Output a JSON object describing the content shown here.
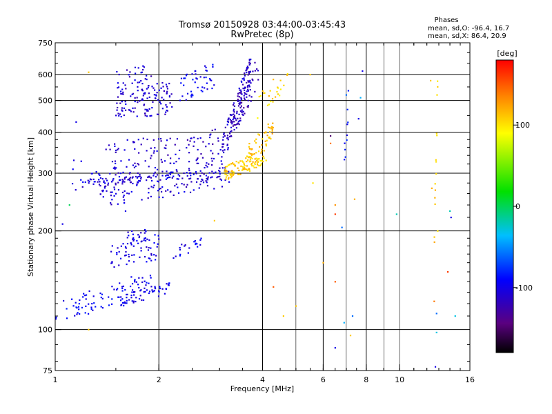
{
  "chart_data": {
    "type": "scatter",
    "title": "Tromsø 20150928 03:44:00-03:45:43",
    "subtitle": "RwPretec (8p)",
    "xlabel": "Frequency [MHz]",
    "ylabel": "Stationary phase Virtual Height [km]",
    "x_scale": "log",
    "y_scale": "log",
    "xlim": [
      1,
      16
    ],
    "ylim": [
      75,
      750
    ],
    "x_ticks": [
      1,
      2,
      4,
      6,
      8,
      10,
      16
    ],
    "x_tick_labels": [
      "1",
      "2",
      "4",
      "6",
      "8",
      "10",
      "16"
    ],
    "x_grid_major": [
      2,
      4,
      6,
      8
    ],
    "x_grid_minor": [
      5,
      7,
      9,
      10
    ],
    "y_ticks": [
      75,
      100,
      200,
      300,
      400,
      500,
      600,
      750
    ],
    "y_tick_labels": [
      "75",
      "100",
      "200",
      "300",
      "400",
      "500",
      "600",
      "750"
    ],
    "y_grid": [
      100,
      200,
      300,
      400,
      500,
      600
    ],
    "grid": true,
    "stats": {
      "header": "Phases",
      "line_o": "mean, sd,O: -96.4, 16.7",
      "line_x": "mean, sd,X:  86.4, 20.9"
    },
    "colorbar": {
      "label": "[deg]",
      "range": [
        -180,
        180
      ],
      "ticks": [
        100,
        0,
        -100
      ],
      "tick_labels": [
        "100",
        "0",
        "-100"
      ],
      "placement": "right"
    },
    "series": [
      {
        "marker_color_by": "phase_deg",
        "traces": [
          {
            "f": [
              1.0,
              1.9
            ],
            "h_start": 112,
            "h_end": 140,
            "phase": -95,
            "n": 90,
            "spread": 0.035
          },
          {
            "f": [
              1.55,
              2.15
            ],
            "h_start": 123,
            "h_end": 135,
            "phase": -100,
            "n": 50,
            "spread": 0.02
          },
          {
            "f": [
              1.45,
              2.0
            ],
            "h_start": 165,
            "h_end": 180,
            "phase": -102,
            "n": 60,
            "spread": 0.04
          },
          {
            "f": [
              1.6,
              1.85
            ],
            "h_start": 190,
            "h_end": 195,
            "phase": -105,
            "n": 20,
            "spread": 0.02
          },
          {
            "f": [
              2.2,
              2.7
            ],
            "h_start": 173,
            "h_end": 185,
            "phase": -98,
            "n": 20,
            "spread": 0.02
          },
          {
            "f": [
              1.2,
              3.2
            ],
            "h_start": 280,
            "h_end": 300,
            "phase": -105,
            "n": 70,
            "spread": 0.012
          },
          {
            "f": [
              1.1,
              1.6
            ],
            "h_start": 300,
            "h_end": 275,
            "phase": -100,
            "n": 25,
            "spread": 0.05
          },
          {
            "f": [
              1.35,
              3.2
            ],
            "h_start": 258,
            "h_end": 300,
            "phase": -108,
            "n": 140,
            "spread": 0.04
          },
          {
            "f": [
              1.4,
              2.3
            ],
            "h_start": 330,
            "h_end": 340,
            "phase": -110,
            "n": 90,
            "spread": 0.06
          },
          {
            "f": [
              1.5,
              2.2
            ],
            "h_start": 490,
            "h_end": 510,
            "phase": -108,
            "n": 110,
            "spread": 0.05
          },
          {
            "f": [
              1.5,
              1.9
            ],
            "h_start": 560,
            "h_end": 590,
            "phase": -110,
            "n": 35,
            "spread": 0.04
          },
          {
            "f": [
              2.3,
              2.9
            ],
            "h_start": 540,
            "h_end": 600,
            "phase": -95,
            "n": 45,
            "spread": 0.04
          },
          {
            "f": [
              2.4,
              3.0
            ],
            "h_start": 340,
            "h_end": 370,
            "phase": -115,
            "n": 40,
            "spread": 0.05
          },
          {
            "f": [
              3.0,
              3.7
            ],
            "h_start": 330,
            "h_end": 620,
            "phase": -112,
            "n": 130,
            "spread": 0.05
          },
          {
            "f": [
              3.2,
              3.9
            ],
            "h_start": 400,
            "h_end": 630,
            "phase": -120,
            "n": 60,
            "spread": 0.05
          },
          {
            "f": [
              3.1,
              4.1
            ],
            "h_start": 298,
            "h_end": 340,
            "phase": 108,
            "n": 120,
            "spread": 0.025
          },
          {
            "f": [
              3.6,
              4.3
            ],
            "h_start": 340,
            "h_end": 410,
            "phase": 112,
            "n": 50,
            "spread": 0.03
          },
          {
            "f": [
              3.8,
              4.8
            ],
            "h_start": 460,
            "h_end": 600,
            "phase": 105,
            "n": 25,
            "spread": 0.04
          },
          {
            "f": [
              6.9,
              7.1
            ],
            "h_start": 320,
            "h_end": 500,
            "phase": -90,
            "n": 10,
            "spread": 0.05
          },
          {
            "f": [
              12.6,
              12.9
            ],
            "h_start": 180,
            "h_end": 560,
            "phase": 110,
            "n": 14,
            "spread": 0.06
          }
        ]
      }
    ],
    "scattered_points": [
      {
        "f": 1.25,
        "h": 610,
        "phase": 110
      },
      {
        "f": 1.25,
        "h": 100,
        "phase": 110
      },
      {
        "f": 1.15,
        "h": 430,
        "phase": -100
      },
      {
        "f": 1.1,
        "h": 240,
        "phase": 0
      },
      {
        "f": 1.05,
        "h": 210,
        "phase": -100
      },
      {
        "f": 1.6,
        "h": 230,
        "phase": -100
      },
      {
        "f": 2.9,
        "h": 215,
        "phase": 110
      },
      {
        "f": 4.3,
        "h": 135,
        "phase": 150
      },
      {
        "f": 4.6,
        "h": 110,
        "phase": 110
      },
      {
        "f": 5.0,
        "h": 118,
        "phase": 110
      },
      {
        "f": 5.5,
        "h": 600,
        "phase": 110
      },
      {
        "f": 5.6,
        "h": 280,
        "phase": 100
      },
      {
        "f": 6.0,
        "h": 160,
        "phase": 120
      },
      {
        "f": 6.3,
        "h": 390,
        "phase": -150
      },
      {
        "f": 6.3,
        "h": 370,
        "phase": 140
      },
      {
        "f": 6.5,
        "h": 240,
        "phase": 130
      },
      {
        "f": 6.5,
        "h": 225,
        "phase": 160
      },
      {
        "f": 6.5,
        "h": 140,
        "phase": 150
      },
      {
        "f": 6.5,
        "h": 88,
        "phase": -100
      },
      {
        "f": 6.8,
        "h": 205,
        "phase": -60
      },
      {
        "f": 6.9,
        "h": 105,
        "phase": -40
      },
      {
        "f": 7.0,
        "h": 520,
        "phase": -60
      },
      {
        "f": 7.2,
        "h": 96,
        "phase": 110
      },
      {
        "f": 7.3,
        "h": 110,
        "phase": -60
      },
      {
        "f": 7.4,
        "h": 250,
        "phase": 120
      },
      {
        "f": 7.6,
        "h": 440,
        "phase": -100
      },
      {
        "f": 7.7,
        "h": 510,
        "phase": -40
      },
      {
        "f": 7.8,
        "h": 615,
        "phase": -100
      },
      {
        "f": 9.8,
        "h": 225,
        "phase": -20
      },
      {
        "f": 12.3,
        "h": 575,
        "phase": 110
      },
      {
        "f": 12.4,
        "h": 270,
        "phase": 120
      },
      {
        "f": 12.6,
        "h": 122,
        "phase": 140
      },
      {
        "f": 12.8,
        "h": 98,
        "phase": -30
      },
      {
        "f": 12.7,
        "h": 77,
        "phase": -100
      },
      {
        "f": 12.8,
        "h": 112,
        "phase": -60
      },
      {
        "f": 12.9,
        "h": 200,
        "phase": 100
      },
      {
        "f": 13.8,
        "h": 150,
        "phase": 160
      },
      {
        "f": 14.0,
        "h": 230,
        "phase": -20
      },
      {
        "f": 14.1,
        "h": 220,
        "phase": -100
      },
      {
        "f": 14.5,
        "h": 110,
        "phase": -30
      }
    ]
  }
}
